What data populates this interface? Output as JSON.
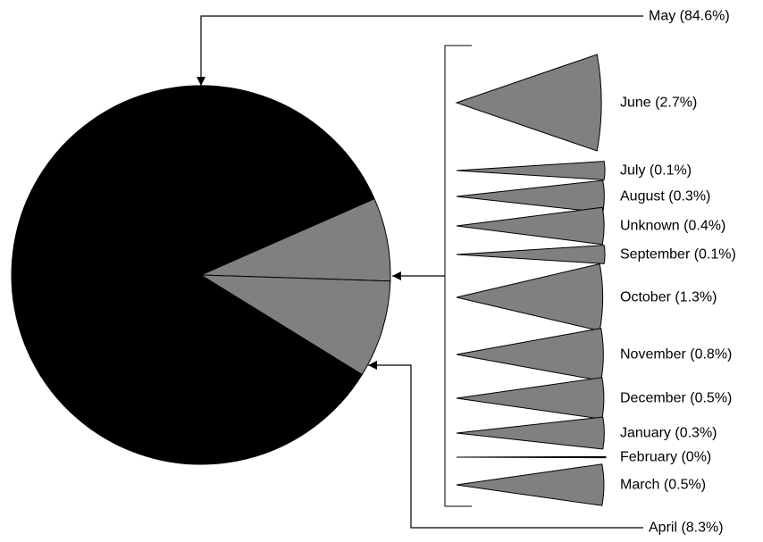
{
  "chart_data": {
    "type": "pie",
    "title": "",
    "colors": {
      "main": "#000000",
      "other": "#808080",
      "outline": "#000000"
    },
    "main_slice": {
      "label": "May (84.6%)",
      "name": "May",
      "value": 84.6
    },
    "other_slices_breakdown": [
      {
        "label": "June (2.7%)",
        "name": "June",
        "value": 2.7
      },
      {
        "label": "July (0.1%)",
        "name": "July",
        "value": 0.1
      },
      {
        "label": "August (0.3%)",
        "name": "August",
        "value": 0.3
      },
      {
        "label": "Unknown (0.4%)",
        "name": "Unknown",
        "value": 0.4
      },
      {
        "label": "September (0.1%)",
        "name": "September",
        "value": 0.1
      },
      {
        "label": "October (1.3%)",
        "name": "October",
        "value": 1.3
      },
      {
        "label": "November (0.8%)",
        "name": "November",
        "value": 0.8
      },
      {
        "label": "December (0.5%)",
        "name": "December",
        "value": 0.5
      },
      {
        "label": "January (0.3%)",
        "name": "January",
        "value": 0.3
      },
      {
        "label": "February (0%)",
        "name": "February",
        "value": 0
      },
      {
        "label": "March (0.5%)",
        "name": "March",
        "value": 0.5
      }
    ],
    "april_slice": {
      "label": "April (8.3%)",
      "name": "April",
      "value": 8.3
    }
  }
}
